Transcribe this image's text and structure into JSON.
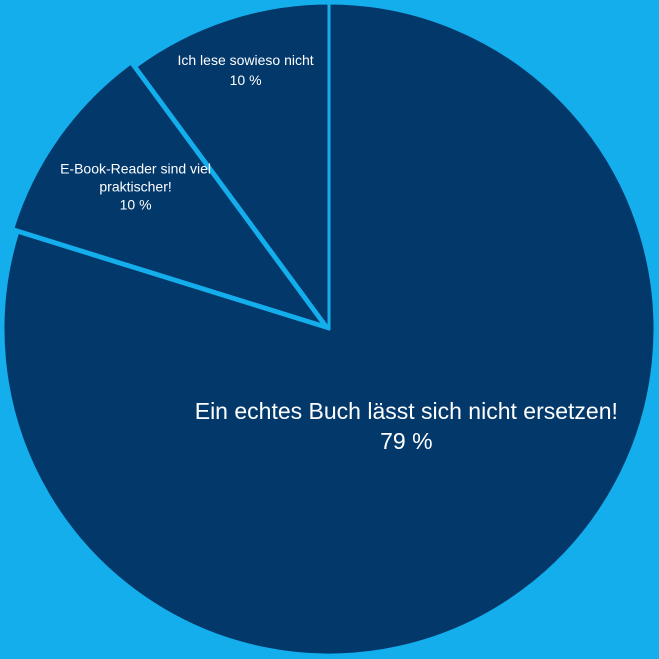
{
  "chart_data": {
    "type": "pie",
    "title": "",
    "background": "#14aeec",
    "slice_color": "#03386b",
    "separator_color": "#14aeec",
    "slices": [
      {
        "label": "Ein echtes Buch lässt sich nicht ersetzen!",
        "value": 79,
        "value_label": "79 %",
        "exploded": false
      },
      {
        "label": "E-Book-Reader sind viel praktischer!",
        "value": 10,
        "value_label": "10 %",
        "exploded": true
      },
      {
        "label": "Ich lese sowieso nicht",
        "value": 10,
        "value_label": "10 %",
        "exploded": false
      }
    ]
  }
}
